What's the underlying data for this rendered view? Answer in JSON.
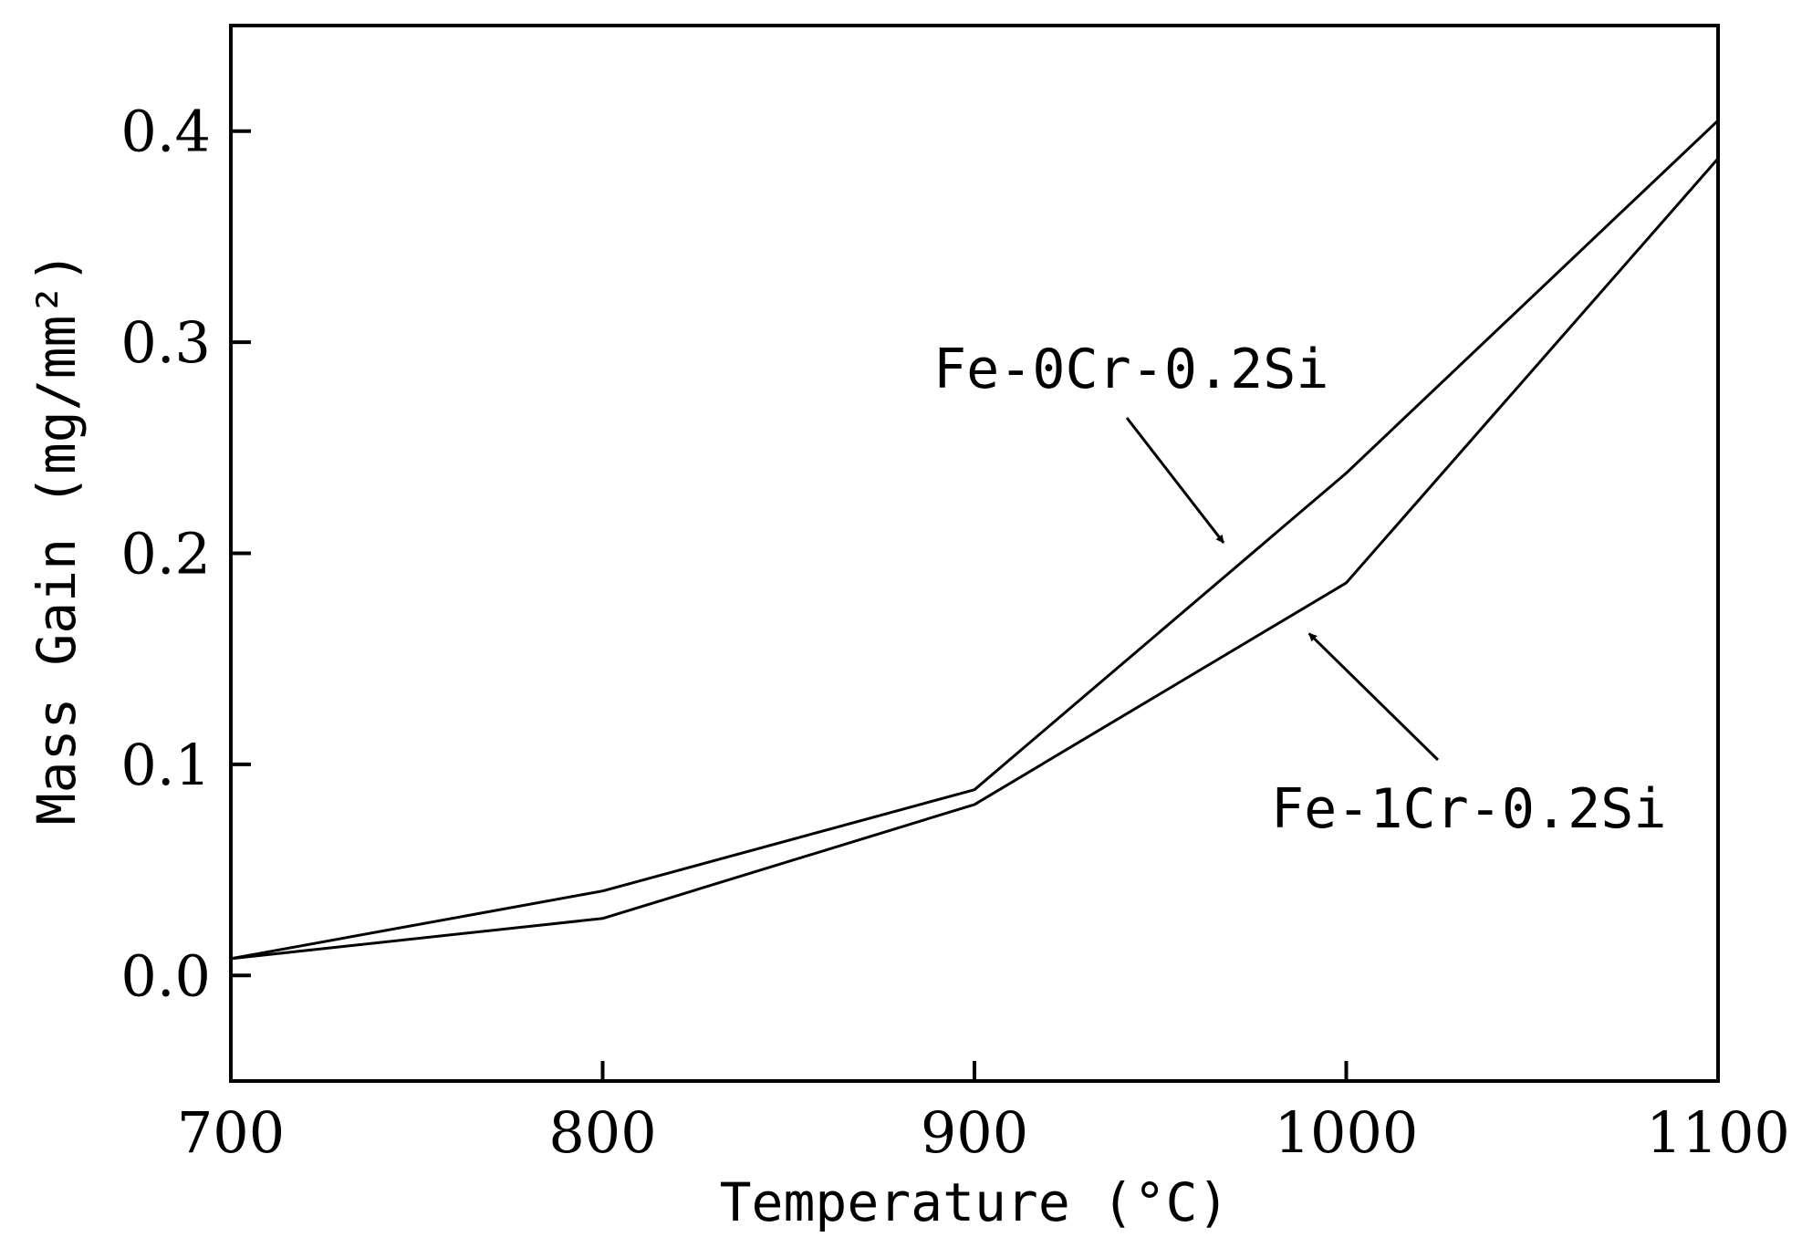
{
  "chart_data": {
    "type": "line",
    "title": "",
    "xlabel": "Temperature (°C)",
    "ylabel": "Mass Gain (mg/mm²)",
    "xlim": [
      700,
      1100
    ],
    "ylim": [
      -0.05,
      0.45
    ],
    "x_ticks": [
      700,
      800,
      900,
      1000,
      1100
    ],
    "x_tick_labels": [
      "700",
      "800",
      "900",
      "1000",
      "1100"
    ],
    "y_ticks": [
      0.0,
      0.1,
      0.2,
      0.3,
      0.4
    ],
    "y_tick_labels": [
      "0.0",
      "0.1",
      "0.2",
      "0.3",
      "0.4"
    ],
    "grid": false,
    "legend": "none",
    "x": [
      700,
      800,
      900,
      1000,
      1100
    ],
    "series": [
      {
        "name": "Fe-0Cr-0.2Si",
        "values": [
          0.008,
          0.04,
          0.088,
          0.238,
          0.405
        ]
      },
      {
        "name": "Fe-1Cr-0.2Si",
        "values": [
          0.008,
          0.027,
          0.081,
          0.186,
          0.387
        ]
      }
    ],
    "annotations": [
      {
        "text": "Fe-0Cr-0.2Si",
        "series": 0,
        "arrow_to": [
          967,
          0.205
        ]
      },
      {
        "text": "Fe-1Cr-0.2Si",
        "series": 1,
        "arrow_to": [
          990,
          0.162
        ]
      }
    ]
  }
}
